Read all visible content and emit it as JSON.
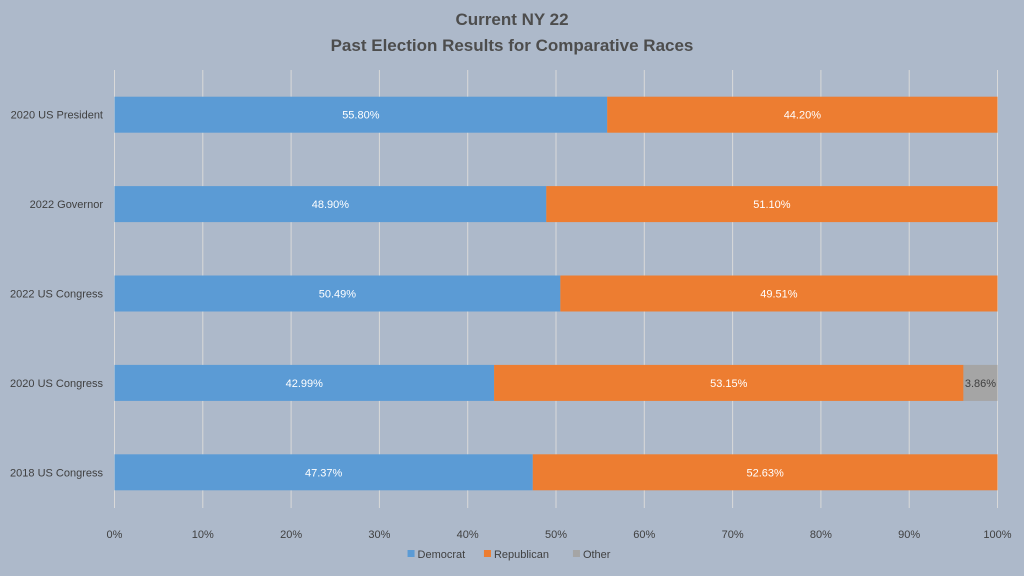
{
  "chart_data": {
    "type": "bar",
    "orientation": "horizontal",
    "stacked": "100%",
    "title": "Current NY 22",
    "subtitle": "Past Election Results for Comparative Races",
    "categories": [
      "2020 US President",
      "2022 Governor",
      "2022 US Congress",
      "2020 US Congress",
      "2018 US Congress"
    ],
    "series": [
      {
        "name": "Democrat",
        "color": "#5b9bd5",
        "values": [
          55.8,
          48.9,
          50.49,
          42.99,
          47.37
        ],
        "labels": [
          "55.80%",
          "48.90%",
          "50.49%",
          "42.99%",
          "47.37%"
        ]
      },
      {
        "name": "Republican",
        "color": "#ed7d31",
        "values": [
          44.2,
          51.1,
          49.51,
          53.15,
          52.63
        ],
        "labels": [
          "44.20%",
          "51.10%",
          "49.51%",
          "53.15%",
          "52.63%"
        ]
      },
      {
        "name": "Other",
        "color": "#a5a5a5",
        "values": [
          0,
          0,
          0,
          3.86,
          0
        ],
        "labels": [
          "",
          "",
          "",
          "3.86%",
          ""
        ]
      }
    ],
    "x_ticks": [
      "0%",
      "10%",
      "20%",
      "30%",
      "40%",
      "50%",
      "60%",
      "70%",
      "80%",
      "90%",
      "100%"
    ],
    "xlim": [
      0,
      100
    ],
    "grid": true,
    "legend": "bottom"
  }
}
